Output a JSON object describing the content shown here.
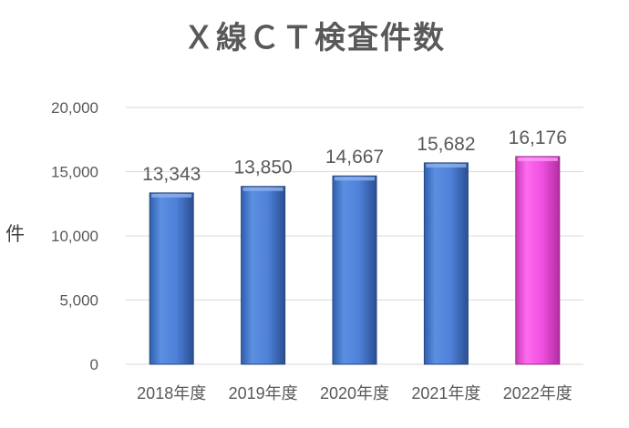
{
  "chart_data": {
    "type": "bar",
    "title": "Ｘ線ＣＴ検査件数",
    "xlabel": "",
    "ylabel": "件",
    "categories": [
      "2018年度",
      "2019年度",
      "2020年度",
      "2021年度",
      "2022年度"
    ],
    "values": [
      13343,
      13850,
      14667,
      15682,
      16176
    ],
    "value_labels": [
      "13,343",
      "13,850",
      "14,667",
      "15,682",
      "16,176"
    ],
    "ylim": [
      0,
      20000
    ],
    "yticks": [
      0,
      5000,
      10000,
      15000,
      20000
    ],
    "ytick_labels": [
      "0",
      "5,000",
      "10,000",
      "15,000",
      "20,000"
    ],
    "grid": true,
    "legend": "none",
    "colors": {
      "default_bar": "#4f81d9",
      "highlight_bar": "#f04fe0",
      "highlight_index": 4,
      "grid": "#d9d9d9",
      "text": "#595959"
    }
  }
}
